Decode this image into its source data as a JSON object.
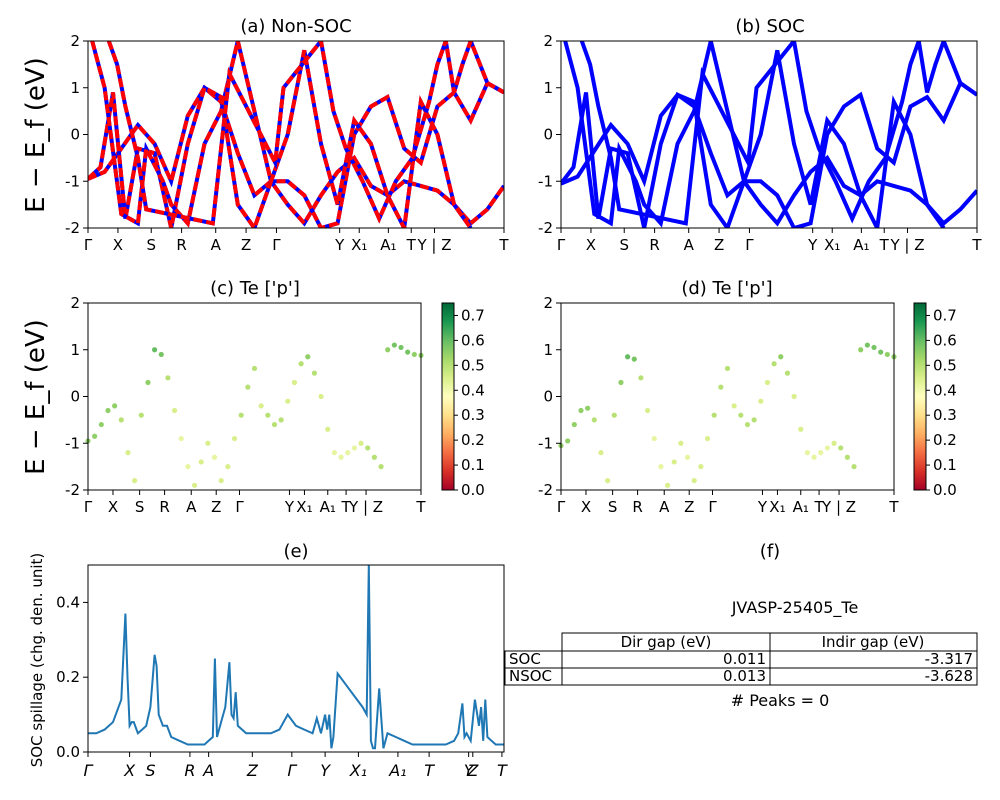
{
  "panels": {
    "a": {
      "title": "(a) Non-SOC"
    },
    "b": {
      "title": "(b) SOC"
    },
    "c": {
      "title": "(c)  Te ['p']"
    },
    "d": {
      "title": "(d) Te ['p']"
    },
    "e": {
      "title": "(e)"
    },
    "f": {
      "title": "(f)"
    }
  },
  "ylabel_energy": "E − E_f (eV)",
  "ylabel_spillage": "SOC spillage (chg. den. unit)",
  "band_ticks_ab": [
    "Γ",
    "X",
    "S",
    "R",
    "A",
    "Z",
    "Γ",
    "Y",
    "X₁",
    "A₁",
    "T",
    "Y | Z",
    "T"
  ],
  "band_ticks_cd": [
    "Γ",
    "X",
    "S",
    "R",
    "A",
    "Z",
    "Γ",
    "Y",
    "X₁",
    "A₁",
    "T",
    "Y | Z",
    "T"
  ],
  "spillage_ticks": [
    "Γ",
    "X",
    "S",
    "R",
    "A",
    "Z",
    "Γ",
    "Y",
    "X₁",
    "A₁",
    "T",
    "Y",
    "Z",
    "T"
  ],
  "energy_ticks": [
    "-2",
    "-1",
    "0",
    "1",
    "2"
  ],
  "spillage_yticks": [
    "0.0",
    "0.2",
    "0.4"
  ],
  "colorbar_ticks": [
    "0.0",
    "0.1",
    "0.2",
    "0.3",
    "0.4",
    "0.5",
    "0.6",
    "0.7"
  ],
  "table": {
    "material": "JVASP-25405_Te",
    "headers": [
      "Dir gap (eV)",
      "Indir gap (eV)"
    ],
    "rows": [
      {
        "label": "SOC",
        "dir": "0.011",
        "indir": "-3.317"
      },
      {
        "label": "NSOC",
        "dir": "0.013",
        "indir": "-3.628"
      }
    ],
    "peaks": "# Peaks = 0"
  },
  "colors": {
    "nonsoc_solid": "#0000ff",
    "nonsoc_dash": "#ff0000",
    "soc": "#0000ff",
    "spillage": "#1f77b4"
  },
  "chart_data": [
    {
      "type": "line",
      "panel": "a",
      "title": "(a) Non-SOC",
      "ylabel": "E − E_f (eV)",
      "ylim": [
        -2,
        2
      ],
      "xlim": [
        0,
        1
      ],
      "series": [
        {
          "x": [
            0.0,
            0.04,
            0.08,
            0.12,
            0.16,
            0.2,
            0.24,
            0.28,
            0.32,
            0.36,
            0.4,
            0.44,
            0.48,
            0.52,
            0.56,
            0.6,
            0.64,
            0.68,
            0.72,
            0.76,
            0.8,
            0.84,
            0.88,
            0.92,
            0.96,
            1.0
          ],
          "y": [
            -0.95,
            -0.8,
            -0.3,
            0.2,
            -0.2,
            -1.0,
            0.4,
            1.0,
            0.7,
            -0.4,
            -1.3,
            -1.0,
            -1.5,
            -1.9,
            -1.3,
            -0.8,
            -0.5,
            -1.1,
            -1.3,
            -1.0,
            -1.1,
            -1.2,
            -1.5,
            -1.9,
            -1.6,
            -1.1
          ]
        },
        {
          "x": [
            0.0,
            0.03,
            0.06,
            0.09,
            0.12,
            0.16,
            0.2,
            0.24,
            0.28,
            0.32,
            0.36,
            0.4,
            0.44,
            0.48,
            0.52,
            0.56,
            0.6,
            0.64,
            0.68,
            0.72,
            0.76,
            0.8,
            0.84,
            0.88,
            0.92,
            0.96,
            1.0
          ],
          "y": [
            -0.95,
            -0.7,
            0.9,
            -1.8,
            -0.3,
            -0.4,
            -2.0,
            -0.2,
            1.0,
            0.8,
            -1.5,
            -2.0,
            -1.0,
            -1.0,
            -1.3,
            -2.0,
            -1.9,
            0.0,
            0.6,
            0.8,
            -0.3,
            -0.6,
            0.6,
            0.9,
            0.3,
            1.1,
            0.9
          ]
        },
        {
          "x": [
            0.01,
            0.04,
            0.08,
            0.12,
            0.14,
            0.18,
            0.2,
            0.24,
            0.28,
            0.32,
            0.36,
            0.4,
            0.44,
            0.48,
            0.52,
            0.56,
            0.6,
            0.64,
            0.68,
            0.72,
            0.76,
            0.8,
            0.84,
            0.88,
            0.92
          ],
          "y": [
            2.0,
            1.0,
            -1.7,
            -1.9,
            -0.3,
            -1.0,
            -1.5,
            -1.9,
            -0.2,
            0.5,
            2.0,
            0.5,
            -1.0,
            0.0,
            1.8,
            -0.2,
            -1.5,
            0.3,
            -0.2,
            -1.3,
            -2.0,
            0.7,
            0.0,
            -1.5,
            -2.0
          ]
        },
        {
          "x": [
            0.05,
            0.07,
            0.09,
            0.12,
            0.14,
            0.3,
            0.32,
            0.34,
            0.45,
            0.47,
            0.56,
            0.58,
            0.59,
            0.62,
            0.66,
            0.7,
            0.74,
            0.78,
            0.82,
            0.84,
            0.86,
            0.88,
            0.9,
            0.92,
            0.96,
            1.0
          ],
          "y": [
            2.0,
            1.5,
            0.6,
            -0.5,
            -1.6,
            -1.9,
            -0.3,
            1.3,
            -0.6,
            1.0,
            2.0,
            1.0,
            0.5,
            -0.3,
            -1.0,
            -1.8,
            -1.0,
            -0.5,
            0.7,
            1.5,
            2.0,
            0.9,
            1.5,
            2.0,
            1.1,
            0.9
          ]
        }
      ]
    },
    {
      "type": "line",
      "panel": "b",
      "title": "(b) SOC",
      "ylim": [
        -2,
        2
      ],
      "xlim": [
        0,
        1
      ],
      "series": [
        {
          "x": [
            0.0,
            0.04,
            0.08,
            0.12,
            0.16,
            0.2,
            0.24,
            0.28,
            0.32,
            0.36,
            0.4,
            0.44,
            0.48,
            0.52,
            0.56,
            0.6,
            0.64,
            0.68,
            0.72,
            0.76,
            0.8,
            0.84,
            0.88,
            0.92,
            0.96,
            1.0
          ],
          "y": [
            -1.05,
            -0.9,
            -0.35,
            0.2,
            -0.2,
            -1.0,
            0.4,
            0.85,
            0.6,
            -0.4,
            -1.3,
            -1.0,
            -1.5,
            -1.9,
            -1.3,
            -0.8,
            -0.5,
            -1.1,
            -1.3,
            -1.0,
            -1.1,
            -1.2,
            -1.5,
            -1.9,
            -1.6,
            -1.2
          ]
        },
        {
          "x": [
            0.0,
            0.03,
            0.06,
            0.09,
            0.12,
            0.16,
            0.2,
            0.24,
            0.28,
            0.32,
            0.36,
            0.4,
            0.44,
            0.48,
            0.52,
            0.56,
            0.6,
            0.64,
            0.68,
            0.72,
            0.76,
            0.8,
            0.84,
            0.88,
            0.92,
            0.96,
            1.0
          ],
          "y": [
            -1.05,
            -0.7,
            0.9,
            -1.8,
            -0.3,
            -0.4,
            -2.0,
            -0.2,
            0.85,
            0.7,
            -1.5,
            -2.0,
            -1.0,
            -1.0,
            -1.3,
            -2.0,
            -1.9,
            0.0,
            0.6,
            0.85,
            -0.3,
            -0.6,
            0.6,
            0.8,
            0.3,
            1.1,
            0.85
          ]
        },
        {
          "x": [
            0.01,
            0.04,
            0.08,
            0.12,
            0.14,
            0.18,
            0.2,
            0.24,
            0.28,
            0.32,
            0.36,
            0.4,
            0.44,
            0.48,
            0.52,
            0.56,
            0.6,
            0.64,
            0.68,
            0.72,
            0.76,
            0.8,
            0.84,
            0.88,
            0.92
          ],
          "y": [
            2.0,
            1.0,
            -1.7,
            -1.9,
            -0.3,
            -1.0,
            -1.5,
            -1.9,
            -0.2,
            0.5,
            2.0,
            0.5,
            -1.0,
            0.0,
            1.8,
            -0.2,
            -1.5,
            0.3,
            -0.2,
            -1.3,
            -2.0,
            0.7,
            0.0,
            -1.5,
            -2.0
          ]
        },
        {
          "x": [
            0.05,
            0.07,
            0.09,
            0.12,
            0.14,
            0.3,
            0.32,
            0.34,
            0.45,
            0.47,
            0.56,
            0.58,
            0.59,
            0.62,
            0.66,
            0.7,
            0.74,
            0.78,
            0.82,
            0.84,
            0.86,
            0.88,
            0.9,
            0.92,
            0.96,
            1.0
          ],
          "y": [
            2.0,
            1.5,
            0.6,
            -0.5,
            -1.6,
            -1.9,
            -0.3,
            1.3,
            -0.6,
            1.0,
            2.0,
            1.0,
            0.5,
            -0.3,
            -1.0,
            -1.8,
            -1.0,
            -0.5,
            0.7,
            1.5,
            2.0,
            0.9,
            1.5,
            2.0,
            1.1,
            0.85
          ]
        }
      ]
    },
    {
      "type": "scatter",
      "panel": "c",
      "title": "(c)  Te ['p']",
      "ylim": [
        -2,
        2
      ],
      "xlim": [
        0,
        1
      ],
      "colorbar": [
        0.0,
        0.75
      ],
      "series": [
        {
          "x": [
            0.0,
            0.02,
            0.04,
            0.06,
            0.08,
            0.1,
            0.12,
            0.14,
            0.16,
            0.18,
            0.2,
            0.22,
            0.24,
            0.26,
            0.28,
            0.3,
            0.32,
            0.34,
            0.36,
            0.38,
            0.4,
            0.42,
            0.44,
            0.46,
            0.48,
            0.5,
            0.52,
            0.54,
            0.56,
            0.58,
            0.6,
            0.62,
            0.64,
            0.66,
            0.68,
            0.7,
            0.72,
            0.74,
            0.76,
            0.78,
            0.8,
            0.82,
            0.84,
            0.86,
            0.88,
            0.9,
            0.92,
            0.94,
            0.96,
            0.98,
            1.0
          ],
          "y": [
            -0.95,
            -0.85,
            -0.6,
            -0.3,
            -0.2,
            -0.5,
            -1.2,
            -1.8,
            -0.4,
            0.3,
            1.0,
            0.9,
            0.4,
            -0.3,
            -0.9,
            -1.5,
            -1.9,
            -1.4,
            -1.0,
            -1.3,
            -1.8,
            -1.5,
            -0.9,
            -0.4,
            0.2,
            0.6,
            -0.2,
            -0.4,
            -0.6,
            -0.5,
            -0.1,
            0.3,
            0.7,
            0.85,
            0.5,
            0.0,
            -0.7,
            -1.2,
            -1.3,
            -1.2,
            -1.1,
            -1.0,
            -1.1,
            -1.3,
            -1.5,
            1.0,
            1.1,
            1.05,
            0.95,
            0.9,
            0.88
          ],
          "c": [
            0.55,
            0.55,
            0.55,
            0.55,
            0.55,
            0.5,
            0.45,
            0.45,
            0.5,
            0.55,
            0.6,
            0.58,
            0.5,
            0.45,
            0.42,
            0.42,
            0.45,
            0.45,
            0.45,
            0.42,
            0.45,
            0.45,
            0.45,
            0.5,
            0.5,
            0.5,
            0.45,
            0.5,
            0.5,
            0.5,
            0.45,
            0.45,
            0.5,
            0.55,
            0.5,
            0.45,
            0.45,
            0.42,
            0.42,
            0.42,
            0.42,
            0.45,
            0.5,
            0.5,
            0.5,
            0.55,
            0.58,
            0.58,
            0.58,
            0.55,
            0.55
          ]
        }
      ]
    },
    {
      "type": "scatter",
      "panel": "d",
      "title": "(d) Te ['p']",
      "ylim": [
        -2,
        2
      ],
      "xlim": [
        0,
        1
      ],
      "colorbar": [
        0.0,
        0.75
      ],
      "series": [
        {
          "x": [
            0.0,
            0.02,
            0.04,
            0.06,
            0.08,
            0.1,
            0.12,
            0.14,
            0.16,
            0.18,
            0.2,
            0.22,
            0.24,
            0.26,
            0.28,
            0.3,
            0.32,
            0.34,
            0.36,
            0.38,
            0.4,
            0.42,
            0.44,
            0.46,
            0.48,
            0.5,
            0.52,
            0.54,
            0.56,
            0.58,
            0.6,
            0.62,
            0.64,
            0.66,
            0.68,
            0.7,
            0.72,
            0.74,
            0.76,
            0.78,
            0.8,
            0.82,
            0.84,
            0.86,
            0.88,
            0.9,
            0.92,
            0.94,
            0.96,
            0.98,
            1.0
          ],
          "y": [
            -1.05,
            -0.95,
            -0.6,
            -0.3,
            -0.25,
            -0.5,
            -1.2,
            -1.8,
            -0.4,
            0.3,
            0.85,
            0.8,
            0.4,
            -0.3,
            -0.9,
            -1.5,
            -1.9,
            -1.4,
            -1.0,
            -1.3,
            -1.8,
            -1.5,
            -0.9,
            -0.4,
            0.2,
            0.6,
            -0.2,
            -0.4,
            -0.6,
            -0.5,
            -0.1,
            0.3,
            0.7,
            0.85,
            0.5,
            0.0,
            -0.7,
            -1.2,
            -1.3,
            -1.2,
            -1.1,
            -1.0,
            -1.1,
            -1.3,
            -1.5,
            1.0,
            1.1,
            1.05,
            0.95,
            0.9,
            0.85
          ],
          "c": [
            0.55,
            0.55,
            0.55,
            0.55,
            0.55,
            0.5,
            0.45,
            0.45,
            0.5,
            0.55,
            0.6,
            0.58,
            0.5,
            0.45,
            0.42,
            0.42,
            0.45,
            0.45,
            0.45,
            0.42,
            0.45,
            0.45,
            0.45,
            0.5,
            0.5,
            0.5,
            0.45,
            0.5,
            0.5,
            0.5,
            0.45,
            0.45,
            0.5,
            0.55,
            0.5,
            0.45,
            0.45,
            0.42,
            0.42,
            0.42,
            0.42,
            0.45,
            0.5,
            0.5,
            0.5,
            0.55,
            0.58,
            0.58,
            0.58,
            0.55,
            0.55
          ]
        }
      ]
    },
    {
      "type": "line",
      "panel": "e",
      "title": "(e)",
      "ylabel": "SOC spillage (chg. den. unit)",
      "ylim": [
        0,
        0.5
      ],
      "xlim": [
        0,
        1
      ],
      "series": [
        {
          "x": [
            0.0,
            0.02,
            0.04,
            0.06,
            0.08,
            0.09,
            0.095,
            0.1,
            0.105,
            0.11,
            0.12,
            0.13,
            0.14,
            0.15,
            0.16,
            0.165,
            0.17,
            0.18,
            0.19,
            0.2,
            0.22,
            0.24,
            0.26,
            0.28,
            0.29,
            0.3,
            0.305,
            0.31,
            0.32,
            0.33,
            0.34,
            0.345,
            0.35,
            0.355,
            0.36,
            0.38,
            0.4,
            0.42,
            0.44,
            0.46,
            0.48,
            0.5,
            0.52,
            0.54,
            0.55,
            0.56,
            0.57,
            0.575,
            0.58,
            0.585,
            0.59,
            0.6,
            0.62,
            0.64,
            0.66,
            0.67,
            0.675,
            0.68,
            0.685,
            0.69,
            0.7,
            0.71,
            0.72,
            0.74,
            0.76,
            0.78,
            0.8,
            0.82,
            0.84,
            0.86,
            0.88,
            0.89,
            0.9,
            0.905,
            0.91,
            0.92,
            0.93,
            0.94,
            0.945,
            0.95,
            0.955,
            0.96,
            0.97,
            0.98,
            0.99,
            1.0
          ],
          "y": [
            0.05,
            0.05,
            0.06,
            0.08,
            0.14,
            0.37,
            0.2,
            0.07,
            0.08,
            0.08,
            0.05,
            0.06,
            0.07,
            0.12,
            0.26,
            0.23,
            0.1,
            0.07,
            0.07,
            0.04,
            0.03,
            0.02,
            0.02,
            0.02,
            0.03,
            0.04,
            0.25,
            0.04,
            0.08,
            0.12,
            0.24,
            0.1,
            0.09,
            0.16,
            0.07,
            0.05,
            0.05,
            0.05,
            0.05,
            0.06,
            0.1,
            0.07,
            0.06,
            0.05,
            0.09,
            0.05,
            0.1,
            0.06,
            0.1,
            0.01,
            0.04,
            0.21,
            0.18,
            0.15,
            0.12,
            0.1,
            0.5,
            0.03,
            0.01,
            0.01,
            0.17,
            0.01,
            0.05,
            0.04,
            0.03,
            0.02,
            0.02,
            0.02,
            0.02,
            0.02,
            0.03,
            0.05,
            0.13,
            0.04,
            0.05,
            0.03,
            0.14,
            0.07,
            0.12,
            0.03,
            0.14,
            0.04,
            0.03,
            0.02,
            0.02,
            0.02
          ]
        }
      ]
    }
  ]
}
